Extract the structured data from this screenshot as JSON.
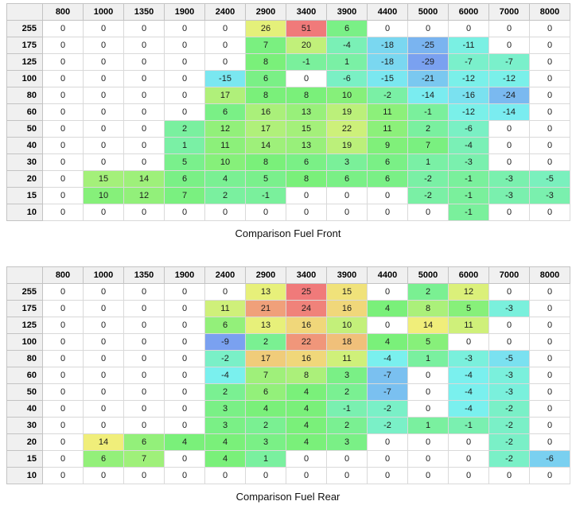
{
  "chart_data": [
    {
      "type": "heatmap",
      "title": "Comparison Fuel Front",
      "x_labels": [
        "800",
        "1000",
        "1350",
        "1900",
        "2400",
        "2900",
        "3400",
        "3900",
        "4400",
        "5000",
        "6000",
        "7000",
        "8000"
      ],
      "y_labels": [
        "255",
        "175",
        "125",
        "100",
        "80",
        "60",
        "50",
        "40",
        "30",
        "20",
        "15",
        "10"
      ],
      "values": [
        [
          0,
          0,
          0,
          0,
          0,
          26,
          51,
          6,
          0,
          0,
          0,
          0,
          0
        ],
        [
          0,
          0,
          0,
          0,
          0,
          7,
          20,
          -4,
          -18,
          -25,
          -11,
          0,
          0
        ],
        [
          0,
          0,
          0,
          0,
          0,
          8,
          -1,
          1,
          -18,
          -29,
          -7,
          -7,
          0
        ],
        [
          0,
          0,
          0,
          0,
          -15,
          6,
          0,
          -6,
          -15,
          -21,
          -12,
          -12,
          0
        ],
        [
          0,
          0,
          0,
          0,
          17,
          8,
          8,
          10,
          -2,
          -14,
          -16,
          -24,
          0
        ],
        [
          0,
          0,
          0,
          0,
          6,
          16,
          13,
          19,
          11,
          -1,
          -12,
          -14,
          0
        ],
        [
          0,
          0,
          0,
          2,
          12,
          17,
          15,
          22,
          11,
          2,
          -6,
          0,
          0
        ],
        [
          0,
          0,
          0,
          1,
          11,
          14,
          13,
          19,
          9,
          7,
          -4,
          0,
          0
        ],
        [
          0,
          0,
          0,
          5,
          10,
          8,
          6,
          3,
          6,
          1,
          -3,
          0,
          0
        ],
        [
          0,
          15,
          14,
          6,
          4,
          5,
          8,
          6,
          6,
          -2,
          -1,
          -3,
          -5
        ],
        [
          0,
          10,
          12,
          7,
          2,
          -1,
          0,
          0,
          0,
          -2,
          -1,
          -3,
          -3
        ],
        [
          0,
          0,
          0,
          0,
          0,
          0,
          0,
          0,
          0,
          0,
          -1,
          0,
          0
        ]
      ],
      "max": 51,
      "min": -29,
      "color_scale": {
        "positive_high": "#f47c7f",
        "mid_positive": "#eef07c",
        "low_positive": "#7cee8e",
        "zero": "#ffffff",
        "low_negative": "#70eebb",
        "mid_negative": "#70e8ee",
        "negative_low": "#77aaf4"
      },
      "legend": "none",
      "grid": true
    },
    {
      "type": "heatmap",
      "title": "Comparison Fuel Rear",
      "x_labels": [
        "800",
        "1000",
        "1350",
        "1900",
        "2400",
        "2900",
        "3400",
        "3900",
        "4400",
        "5000",
        "6000",
        "7000",
        "8000"
      ],
      "y_labels": [
        "255",
        "175",
        "125",
        "100",
        "80",
        "60",
        "50",
        "40",
        "30",
        "20",
        "15",
        "10"
      ],
      "values": [
        [
          0,
          0,
          0,
          0,
          0,
          13,
          25,
          15,
          0,
          2,
          12,
          0,
          0
        ],
        [
          0,
          0,
          0,
          0,
          11,
          21,
          24,
          16,
          4,
          8,
          5,
          -3,
          0
        ],
        [
          0,
          0,
          0,
          0,
          6,
          13,
          16,
          10,
          0,
          14,
          11,
          0,
          0
        ],
        [
          0,
          0,
          0,
          0,
          -9,
          2,
          22,
          18,
          4,
          5,
          0,
          0,
          0
        ],
        [
          0,
          0,
          0,
          0,
          -2,
          17,
          16,
          11,
          -4,
          1,
          -3,
          -5,
          0
        ],
        [
          0,
          0,
          0,
          0,
          -4,
          7,
          8,
          3,
          -7,
          0,
          -4,
          -3,
          0
        ],
        [
          0,
          0,
          0,
          0,
          2,
          6,
          4,
          2,
          -7,
          0,
          -4,
          -3,
          0
        ],
        [
          0,
          0,
          0,
          0,
          3,
          4,
          4,
          -1,
          -2,
          0,
          -4,
          -2,
          0
        ],
        [
          0,
          0,
          0,
          0,
          3,
          2,
          4,
          2,
          -2,
          1,
          -1,
          -2,
          0
        ],
        [
          0,
          14,
          6,
          4,
          4,
          3,
          4,
          3,
          0,
          0,
          0,
          -2,
          0
        ],
        [
          0,
          6,
          7,
          0,
          4,
          1,
          0,
          0,
          0,
          0,
          0,
          -2,
          -6
        ],
        [
          0,
          0,
          0,
          0,
          0,
          0,
          0,
          0,
          0,
          0,
          0,
          0,
          0
        ]
      ],
      "max": 25,
      "min": -9,
      "color_scale": {
        "positive_high": "#f47c7f",
        "mid_positive": "#f0d47c",
        "low_positive": "#7cee9e",
        "zero": "#ffffff",
        "low_negative": "#70eec4",
        "mid_negative": "#70e0f0",
        "negative_low": "#77aaf4"
      },
      "legend": "none",
      "grid": true
    }
  ]
}
